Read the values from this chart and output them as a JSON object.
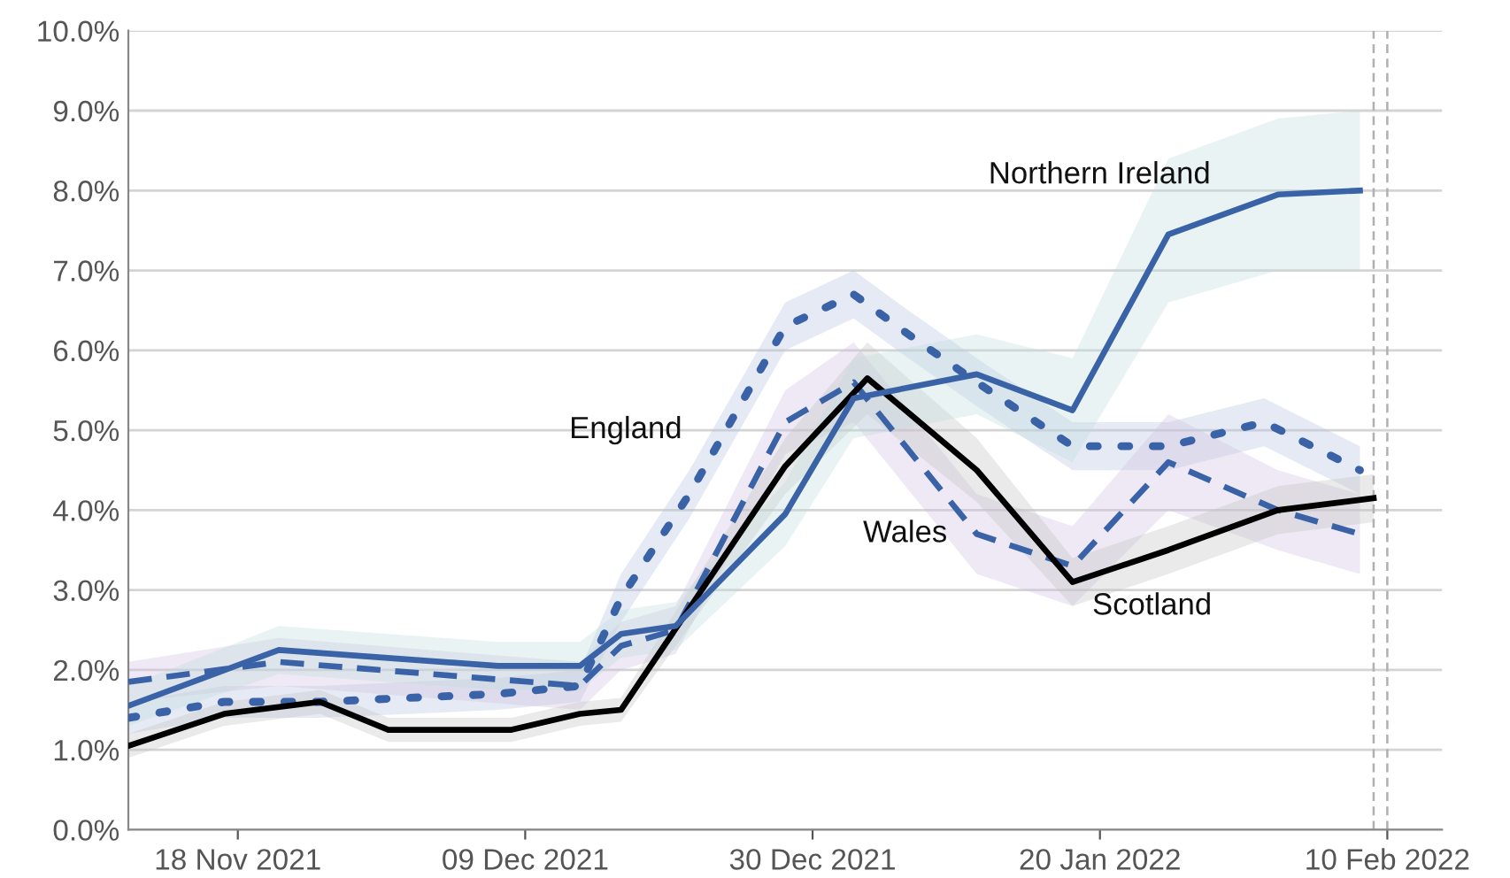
{
  "chart_data": {
    "type": "line",
    "xlim": [
      "2021-11-10",
      "2022-02-14"
    ],
    "xticks": [
      {
        "value": "2021-11-18",
        "label": "18 Nov 2021"
      },
      {
        "value": "2021-12-09",
        "label": "09 Dec 2021"
      },
      {
        "value": "2021-12-30",
        "label": "30 Dec 2021"
      },
      {
        "value": "2022-01-20",
        "label": "20 Jan 2022"
      },
      {
        "value": "2022-02-10",
        "label": "10 Feb 2022"
      }
    ],
    "ylim": [
      0,
      10
    ],
    "yticks": [
      {
        "value": 0,
        "label": "0.0%"
      },
      {
        "value": 1,
        "label": "1.0%"
      },
      {
        "value": 2,
        "label": "2.0%"
      },
      {
        "value": 3,
        "label": "3.0%"
      },
      {
        "value": 4,
        "label": "4.0%"
      },
      {
        "value": 5,
        "label": "5.0%"
      },
      {
        "value": 6,
        "label": "6.0%"
      },
      {
        "value": 7,
        "label": "7.0%"
      },
      {
        "value": 8,
        "label": "8.0%"
      },
      {
        "value": 9,
        "label": "9.0%"
      },
      {
        "value": 10,
        "label": "10.0%"
      }
    ],
    "grid": "y",
    "legend": false,
    "series": [
      {
        "name": "England",
        "color": "#3a62a7",
        "line_style": "dotted",
        "x": [
          "2021-11-10",
          "2021-11-17",
          "2021-11-24",
          "2021-12-07",
          "2021-12-13",
          "2021-12-16",
          "2021-12-21",
          "2021-12-28",
          "2022-01-02",
          "2022-01-06",
          "2022-01-11",
          "2022-01-18",
          "2022-01-25",
          "2022-02-01",
          "2022-02-08"
        ],
        "values": [
          1.4,
          1.6,
          1.6,
          1.7,
          1.8,
          2.9,
          4.2,
          6.3,
          6.7,
          6.2,
          5.6,
          4.8,
          4.8,
          5.1,
          4.5
        ],
        "lower": [
          1.2,
          1.4,
          1.4,
          1.5,
          1.6,
          2.6,
          3.9,
          6.0,
          6.4,
          5.9,
          5.3,
          4.5,
          4.5,
          4.8,
          4.2
        ],
        "upper": [
          1.6,
          1.8,
          1.8,
          1.9,
          2.0,
          3.2,
          4.5,
          6.6,
          7.0,
          6.5,
          5.9,
          5.1,
          5.1,
          5.4,
          4.8
        ]
      },
      {
        "name": "Wales",
        "color": "#3a62a7",
        "line_style": "dashed",
        "x": [
          "2021-11-10",
          "2021-11-21",
          "2021-12-13",
          "2021-12-16",
          "2021-12-20",
          "2021-12-28",
          "2022-01-02",
          "2022-01-11",
          "2022-01-18",
          "2022-01-25",
          "2022-02-02",
          "2022-02-08"
        ],
        "values": [
          1.85,
          2.1,
          1.8,
          2.3,
          2.5,
          5.1,
          5.6,
          3.7,
          3.3,
          4.6,
          4.0,
          3.7
        ],
        "lower": [
          1.6,
          1.8,
          1.5,
          2.0,
          2.2,
          4.7,
          5.1,
          3.2,
          2.8,
          4.0,
          3.5,
          3.2
        ],
        "upper": [
          2.1,
          2.4,
          2.1,
          2.6,
          2.8,
          5.5,
          6.1,
          4.2,
          3.8,
          5.2,
          4.5,
          4.2
        ]
      },
      {
        "name": "Scotland",
        "color": "#000000",
        "line_style": "solid",
        "x": [
          "2021-11-10",
          "2021-11-17",
          "2021-11-24",
          "2021-11-29",
          "2021-12-08",
          "2021-12-13",
          "2021-12-16",
          "2021-12-28",
          "2022-01-03",
          "2022-01-11",
          "2022-01-18",
          "2022-01-25",
          "2022-02-02",
          "2022-02-09"
        ],
        "values": [
          1.05,
          1.45,
          1.6,
          1.25,
          1.25,
          1.45,
          1.5,
          4.55,
          5.65,
          4.5,
          3.1,
          3.5,
          4.0,
          4.15
        ],
        "lower": [
          0.9,
          1.3,
          1.45,
          1.1,
          1.1,
          1.3,
          1.35,
          4.2,
          5.2,
          4.1,
          2.8,
          3.2,
          3.7,
          3.85
        ],
        "upper": [
          1.2,
          1.6,
          1.75,
          1.4,
          1.4,
          1.6,
          1.65,
          4.9,
          6.1,
          4.9,
          3.4,
          3.8,
          4.3,
          4.45
        ]
      },
      {
        "name": "Northern Ireland",
        "color": "#3a62a7",
        "line_style": "solid",
        "x": [
          "2021-11-10",
          "2021-11-21",
          "2021-12-07",
          "2021-12-13",
          "2021-12-16",
          "2021-12-20",
          "2021-12-28",
          "2022-01-02",
          "2022-01-11",
          "2022-01-18",
          "2022-01-25",
          "2022-02-02",
          "2022-02-08"
        ],
        "values": [
          1.55,
          2.25,
          2.05,
          2.05,
          2.45,
          2.55,
          3.95,
          5.4,
          5.7,
          5.25,
          7.45,
          7.95,
          8.0
        ],
        "lower": [
          1.3,
          1.95,
          1.75,
          1.75,
          2.15,
          2.25,
          3.55,
          4.9,
          5.2,
          4.6,
          6.6,
          7.0,
          7.0
        ],
        "upper": [
          1.8,
          2.55,
          2.35,
          2.35,
          2.75,
          2.85,
          4.35,
          5.9,
          6.2,
          5.9,
          8.4,
          8.9,
          9.0
        ]
      }
    ],
    "ref_lines": [
      {
        "axis": "x",
        "value": "2022-02-09",
        "color": "#b0b0b0",
        "line_style": "dashed"
      },
      {
        "axis": "x",
        "value": "2022-02-10",
        "color": "#b0b0b0",
        "line_style": "dashed"
      }
    ]
  }
}
